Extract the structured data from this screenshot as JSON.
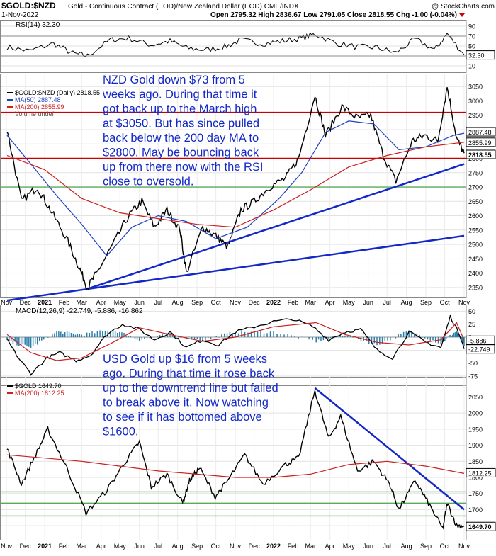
{
  "header": {
    "symbol": "$GOLD:$NZD",
    "description": "Gold - Continuous Contract (EOD)/New Zealand Dollar (EOD)  CME/INDX",
    "watermark": "@ StockCharts.com",
    "date": "1-Nov-2022",
    "ohlc_text": "Open 2795.32  High 2836.67  Low 2791.05  Close 2818.55  Chg -1.00 (-0.04%)"
  },
  "annotations": {
    "nzd_note": [
      "NZD Gold down $73 from 5",
      "weeks ago. During that time it",
      "got back up to the March high",
      "at $3050. But has since pulled",
      "back below the 200 day MA to",
      "$2800. May be bouncing back",
      "up from there now with the RSI",
      "close to oversold."
    ],
    "usd_note": [
      "USD Gold up $16 from 5 weeks",
      "ago. During that time it rose back",
      "up to the downtrend line but failed",
      "to break above it. Now watching",
      "to see if it has bottomed above",
      "$1600."
    ]
  },
  "colors": {
    "price": "#000000",
    "ma50": "#1f3fbf",
    "ma200": "#cc1f1f",
    "trend": "#1428c8",
    "note": "#1428c8",
    "hline_red": "#cc0000",
    "hline_green": "#5aaa5a",
    "hist": "#2a7fa8"
  },
  "chart_data": [
    {
      "id": "rsi",
      "type": "line",
      "title": "RSI(14) 32.30",
      "y_ticks": [
        10,
        30,
        50,
        70,
        90
      ],
      "ylim": [
        0,
        100
      ],
      "last_label": "32.30",
      "x": [
        "2020-11-02",
        "2020-12-07",
        "2021-01-15",
        "2021-02-15",
        "2021-03-10",
        "2021-04-15",
        "2021-05-15",
        "2021-06-20",
        "2021-07-20",
        "2021-08-15",
        "2021-09-15",
        "2021-10-15",
        "2021-11-10",
        "2021-12-15",
        "2022-01-15",
        "2022-02-15",
        "2022-03-08",
        "2022-04-10",
        "2022-05-15",
        "2022-06-15",
        "2022-07-15",
        "2022-08-15",
        "2022-09-15",
        "2022-10-05",
        "2022-11-01"
      ],
      "values": [
        48,
        40,
        55,
        35,
        30,
        62,
        66,
        52,
        60,
        46,
        42,
        48,
        62,
        55,
        60,
        66,
        74,
        56,
        48,
        47,
        36,
        64,
        42,
        75,
        32
      ]
    },
    {
      "id": "nzd_price",
      "type": "line",
      "title": "$GOLD:$NZD (Daily) 2818.55",
      "ylim": [
        2320,
        3090
      ],
      "y_ticks": [
        2350,
        2400,
        2450,
        2500,
        2550,
        2600,
        2650,
        2700,
        2750,
        2800,
        2850,
        2900,
        2950,
        3000,
        3050
      ],
      "x_tick_labels": [
        "Nov",
        "Dec",
        "2021",
        "Feb",
        "Mar",
        "Apr",
        "May",
        "Jun",
        "Jul",
        "Aug",
        "Sep",
        "Oct",
        "Nov",
        "Dec",
        "2022",
        "Feb",
        "Mar",
        "Apr",
        "May",
        "Jun",
        "Jul",
        "Aug",
        "Sep",
        "Oct",
        "Nov"
      ],
      "horizontal_lines": [
        {
          "value": 2960,
          "color": "red"
        },
        {
          "value": 2800,
          "color": "red"
        },
        {
          "value": 2700,
          "color": "green"
        }
      ],
      "trendlines": [
        {
          "from": {
            "x": "2020-11-02",
            "y": 2305
          },
          "to": {
            "x": "2022-11-01",
            "y": 2530
          }
        },
        {
          "from": {
            "x": "2021-03-10",
            "y": 2345
          },
          "to": {
            "x": "2022-11-01",
            "y": 2780
          }
        }
      ],
      "last_labels": [
        {
          "text": "2887.48",
          "value": 2887.48
        },
        {
          "text": "2855.99",
          "value": 2855.99
        },
        {
          "text": "2818.55",
          "value": 2818.55
        }
      ],
      "series": [
        {
          "name": "$GOLD:$NZD (Daily) 2818.55",
          "legend": "$GOLD:$NZD (Daily) 2818.55",
          "x": [
            "2020-11-02",
            "2020-11-25",
            "2020-12-20",
            "2021-01-10",
            "2021-02-05",
            "2021-02-25",
            "2021-03-10",
            "2021-03-25",
            "2021-04-20",
            "2021-05-15",
            "2021-06-05",
            "2021-06-25",
            "2021-07-15",
            "2021-08-05",
            "2021-08-15",
            "2021-09-10",
            "2021-10-01",
            "2021-10-20",
            "2021-11-10",
            "2021-12-01",
            "2021-12-25",
            "2022-01-20",
            "2022-02-10",
            "2022-03-08",
            "2022-03-25",
            "2022-04-20",
            "2022-05-15",
            "2022-06-05",
            "2022-06-25",
            "2022-07-15",
            "2022-08-10",
            "2022-08-30",
            "2022-09-20",
            "2022-10-05",
            "2022-10-20",
            "2022-11-01"
          ],
          "values": [
            2900,
            2650,
            2700,
            2620,
            2520,
            2420,
            2350,
            2400,
            2500,
            2600,
            2650,
            2560,
            2620,
            2550,
            2400,
            2560,
            2530,
            2490,
            2620,
            2650,
            2700,
            2730,
            2800,
            3020,
            2880,
            2980,
            2940,
            2950,
            2810,
            2720,
            2860,
            2880,
            2860,
            3050,
            2870,
            2818
          ]
        },
        {
          "name": "MA(50) 2887.48",
          "legend": "MA(50) 2887.48",
          "x": [
            "2020-11-02",
            "2020-12-10",
            "2021-01-20",
            "2021-03-01",
            "2021-04-10",
            "2021-05-20",
            "2021-07-01",
            "2021-08-15",
            "2021-10-01",
            "2021-11-20",
            "2022-01-10",
            "2022-02-15",
            "2022-03-25",
            "2022-05-01",
            "2022-06-10",
            "2022-07-20",
            "2022-09-01",
            "2022-10-15",
            "2022-11-01"
          ],
          "values": [
            2880,
            2780,
            2670,
            2570,
            2460,
            2560,
            2600,
            2580,
            2520,
            2560,
            2660,
            2750,
            2890,
            2930,
            2920,
            2830,
            2840,
            2880,
            2887.48
          ]
        },
        {
          "name": "MA(200) 2855.99",
          "legend": "MA(200) 2855.99",
          "x": [
            "2020-11-02",
            "2021-01-01",
            "2021-03-01",
            "2021-05-01",
            "2021-07-01",
            "2021-09-01",
            "2021-11-01",
            "2022-01-01",
            "2022-03-01",
            "2022-05-01",
            "2022-07-01",
            "2022-09-01",
            "2022-11-01"
          ],
          "values": [
            2810,
            2760,
            2660,
            2610,
            2590,
            2570,
            2560,
            2620,
            2690,
            2770,
            2810,
            2840,
            2855.99
          ]
        }
      ],
      "legend_extra": "Volume undef"
    },
    {
      "id": "macd",
      "type": "line",
      "title": "MACD(12,26,9) -22.749, -5.886, -16.862",
      "y_ticks": [
        -75,
        -50,
        -25,
        0,
        25,
        50
      ],
      "ylim": [
        -90,
        60
      ],
      "last_labels": [
        {
          "text": "-5.886",
          "value": -5.886
        },
        {
          "text": "-22.749",
          "value": -22.749
        }
      ],
      "series": [
        {
          "name": "MACD",
          "x": [
            "2020-11-02",
            "2020-11-20",
            "2020-12-10",
            "2021-01-05",
            "2021-01-25",
            "2021-02-20",
            "2021-03-15",
            "2021-04-10",
            "2021-05-05",
            "2021-06-01",
            "2021-06-25",
            "2021-07-20",
            "2021-08-15",
            "2021-09-10",
            "2021-10-05",
            "2021-11-01",
            "2021-12-01",
            "2022-01-01",
            "2022-02-01",
            "2022-03-05",
            "2022-03-30",
            "2022-04-25",
            "2022-05-20",
            "2022-06-15",
            "2022-07-10",
            "2022-08-05",
            "2022-09-01",
            "2022-09-25",
            "2022-10-10",
            "2022-10-25",
            "2022-11-01"
          ],
          "values": [
            -5,
            -40,
            -70,
            -40,
            -30,
            -45,
            -35,
            5,
            25,
            15,
            -5,
            10,
            -20,
            -5,
            -15,
            10,
            20,
            30,
            35,
            20,
            -5,
            10,
            15,
            -25,
            -40,
            10,
            -10,
            -20,
            40,
            5,
            -22.749
          ]
        },
        {
          "name": "Signal",
          "x": [
            "2020-11-02",
            "2020-12-10",
            "2021-01-20",
            "2021-03-01",
            "2021-04-20",
            "2021-06-01",
            "2021-07-20",
            "2021-09-10",
            "2021-11-01",
            "2022-01-01",
            "2022-03-10",
            "2022-04-25",
            "2022-06-15",
            "2022-08-05",
            "2022-09-25",
            "2022-10-20",
            "2022-11-01"
          ],
          "values": [
            5,
            -30,
            -45,
            -40,
            -10,
            18,
            5,
            -8,
            0,
            20,
            28,
            5,
            -10,
            -15,
            -5,
            28,
            -5.886
          ]
        },
        {
          "name": "Histogram",
          "x": [
            "2020-11-02",
            "2020-12-10",
            "2021-01-20",
            "2021-03-01",
            "2021-04-20",
            "2021-06-01",
            "2021-07-20",
            "2021-09-10",
            "2021-11-01",
            "2022-01-01",
            "2022-03-10",
            "2022-04-25",
            "2022-06-15",
            "2022-08-05",
            "2022-09-25",
            "2022-10-20",
            "2022-11-01"
          ],
          "values": [
            -8,
            -20,
            10,
            5,
            14,
            -5,
            5,
            -6,
            10,
            10,
            -8,
            5,
            -15,
            12,
            -12,
            12,
            -16.862
          ]
        }
      ]
    },
    {
      "id": "usd_price",
      "type": "line",
      "title": "$GOLD 1649.70",
      "ylim": [
        1615,
        2095
      ],
      "y_ticks": [
        1650,
        1700,
        1750,
        1800,
        1850,
        1900,
        1950,
        2000,
        2050
      ],
      "x_tick_labels": [
        "Nov",
        "Dec",
        "2021",
        "Feb",
        "Mar",
        "Apr",
        "May",
        "Jun",
        "Jul",
        "Aug",
        "Sep",
        "Oct",
        "Nov",
        "Dec",
        "2022",
        "Feb",
        "Mar",
        "Apr",
        "May",
        "Jun",
        "Jul",
        "Aug",
        "Sep",
        "Oct",
        "Nov"
      ],
      "horizontal_lines": [
        {
          "value": 1755,
          "color": "green"
        },
        {
          "value": 1720,
          "color": "green"
        },
        {
          "value": 1680,
          "color": "green"
        }
      ],
      "trendlines": [
        {
          "from": {
            "x": "2022-03-08",
            "y": 2078
          },
          "to": {
            "x": "2022-11-01",
            "y": 1700
          }
        }
      ],
      "last_labels": [
        {
          "text": "1812.25",
          "value": 1812.25
        },
        {
          "text": "1649.70",
          "value": 1649.7
        }
      ],
      "series": [
        {
          "name": "$GOLD 1649.70",
          "legend": "$GOLD 1649.70",
          "x": [
            "2020-11-02",
            "2020-11-25",
            "2020-12-20",
            "2021-01-06",
            "2021-02-05",
            "2021-03-08",
            "2021-04-10",
            "2021-05-10",
            "2021-06-01",
            "2021-06-20",
            "2021-07-15",
            "2021-08-09",
            "2021-08-20",
            "2021-09-05",
            "2021-09-30",
            "2021-10-20",
            "2021-11-16",
            "2021-12-15",
            "2022-01-20",
            "2022-02-10",
            "2022-03-08",
            "2022-03-30",
            "2022-04-18",
            "2022-05-15",
            "2022-06-10",
            "2022-07-05",
            "2022-07-20",
            "2022-08-15",
            "2022-09-05",
            "2022-09-28",
            "2022-10-05",
            "2022-10-20",
            "2022-11-01"
          ],
          "values": [
            1890,
            1780,
            1880,
            1950,
            1830,
            1690,
            1760,
            1850,
            1910,
            1770,
            1810,
            1720,
            1790,
            1830,
            1740,
            1790,
            1870,
            1780,
            1840,
            1860,
            2070,
            1920,
            1990,
            1820,
            1850,
            1780,
            1700,
            1790,
            1720,
            1640,
            1720,
            1650,
            1649.7
          ]
        },
        {
          "name": "MA(200) 1812.25",
          "legend": "MA(200) 1812.25",
          "x": [
            "2020-11-02",
            "2021-01-01",
            "2021-03-01",
            "2021-05-01",
            "2021-07-01",
            "2021-09-01",
            "2021-11-01",
            "2022-01-01",
            "2022-03-01",
            "2022-05-01",
            "2022-07-01",
            "2022-09-01",
            "2022-11-01"
          ],
          "values": [
            1870,
            1860,
            1850,
            1835,
            1820,
            1810,
            1800,
            1800,
            1810,
            1840,
            1850,
            1835,
            1812.25
          ]
        }
      ]
    }
  ]
}
